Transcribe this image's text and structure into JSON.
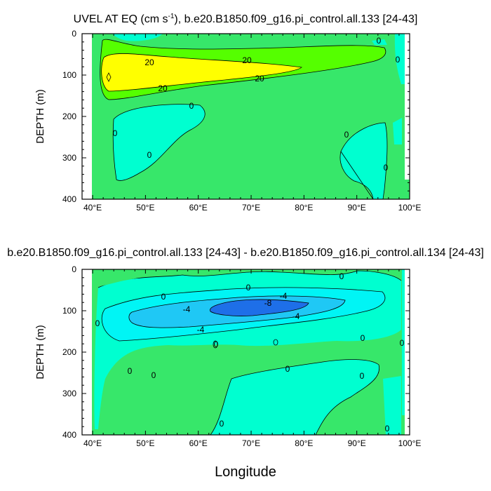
{
  "colors": {
    "land": "#ffffff",
    "c_neg10": "#1e6fe8",
    "c_neg6": "#1fc8f5",
    "c_neg2": "#00f5f5",
    "c_neg1": "#00ffd0",
    "c_0": "#37e76a",
    "c_pos": "#55ff00",
    "c_20": "#ffff00"
  },
  "chart_data": [
    {
      "type": "contour",
      "title_main": "UVEL AT EQ (cm s",
      "title_sup": "-1",
      "title_rest": "), b.e20.B1850.f09_g16.pi_control.all.133 [24-43]",
      "ylabel": "DEPTH (m)",
      "xlim": [
        38,
        100
      ],
      "ylim": [
        400,
        0
      ],
      "xticks": [
        "40°E",
        "50°E",
        "60°E",
        "70°E",
        "80°E",
        "90°E",
        "100°E"
      ],
      "yticks": [
        "0",
        "100",
        "200",
        "300",
        "400"
      ],
      "contour_labels": [
        "20",
        "20",
        "20",
        "20",
        "0",
        "0",
        "0",
        "0",
        "0",
        "0",
        "0"
      ]
    },
    {
      "type": "contour",
      "title": "b.e20.B1850.f09_g16.pi_control.all.133 [24-43] - b.e20.B1850.f09_g16.pi_control.all.134 [24-43]",
      "ylabel": "DEPTH (m)",
      "xlabel": "Longitude",
      "xlim": [
        38,
        100
      ],
      "ylim": [
        400,
        0
      ],
      "xticks": [
        "40°E",
        "50°E",
        "60°E",
        "70°E",
        "80°E",
        "90°E",
        "100°E"
      ],
      "yticks": [
        "0",
        "100",
        "200",
        "300",
        "400"
      ],
      "contour_labels": [
        "0",
        "-4",
        "-4",
        "-4",
        "-4",
        "-8",
        "0",
        "0",
        "0",
        "0",
        "0",
        "0",
        "0",
        "0",
        "0",
        "0",
        "0",
        "0"
      ]
    }
  ]
}
